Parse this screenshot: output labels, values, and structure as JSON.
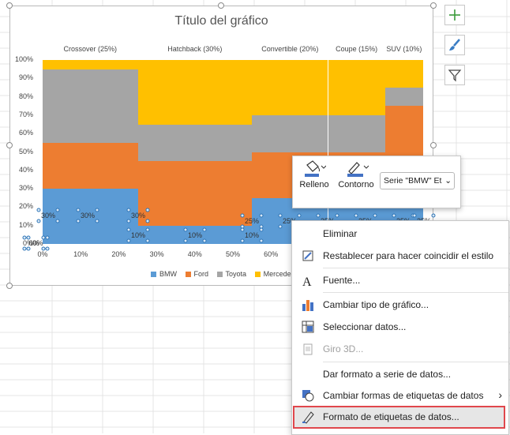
{
  "chart": {
    "title": "Título del gráfico",
    "y_ticks": [
      "100%",
      "90%",
      "80%",
      "70%",
      "60%",
      "50%",
      "40%",
      "30%",
      "20%",
      "10%",
      "0%"
    ],
    "x_ticks": [
      "0%",
      "10%",
      "20%",
      "30%",
      "40%",
      "50%",
      "60%"
    ],
    "legend": [
      "BMW",
      "Ford",
      "Toyota",
      "Mercedes"
    ],
    "colors": {
      "BMW": "#5b9bd5",
      "Ford": "#ed7d31",
      "Toyota": "#a5a5a5",
      "Mercedes": "#ffc000"
    }
  },
  "chart_data": {
    "type": "bar",
    "title": "Título del gráfico",
    "categories": [
      "Crossover (25%)",
      "Hatchback (30%)",
      "Convertible (20%)",
      "Coupe (15%)",
      "SUV (10%)"
    ],
    "widths": [
      25,
      30,
      20,
      15,
      10
    ],
    "series": [
      {
        "name": "BMW",
        "values": [
          30,
          10,
          25,
          25,
          25
        ]
      },
      {
        "name": "Ford",
        "values": [
          25,
          35,
          25,
          25,
          50
        ]
      },
      {
        "name": "Toyota",
        "values": [
          40,
          20,
          20,
          20,
          10
        ]
      },
      {
        "name": "Mercedes",
        "values": [
          5,
          35,
          30,
          30,
          15
        ]
      }
    ],
    "ylim": [
      0,
      100
    ],
    "xlim": [
      0,
      100
    ],
    "legend_position": "bottom",
    "data_labels": [
      "30%",
      "30%",
      "30%",
      "10%",
      "10%",
      "10%",
      "25%",
      "25%",
      "25%",
      "25%",
      "25%",
      "25%",
      "0%",
      "0%"
    ]
  },
  "side_buttons": {
    "add": "plus-icon",
    "style": "brush-icon",
    "filter": "filter-icon"
  },
  "mini_toolbar": {
    "fill_label": "Relleno",
    "outline_label": "Contorno",
    "series_select": "Serie \"BMW\" Et"
  },
  "context_menu": {
    "items": [
      "Eliminar",
      "Restablecer para hacer coincidir el estilo",
      "Fuente...",
      "Cambiar tipo de gráfico...",
      "Seleccionar datos...",
      "Giro 3D...",
      "Dar formato a serie de datos...",
      "Cambiar formas de etiquetas de datos",
      "Formato de etiquetas de datos..."
    ]
  }
}
